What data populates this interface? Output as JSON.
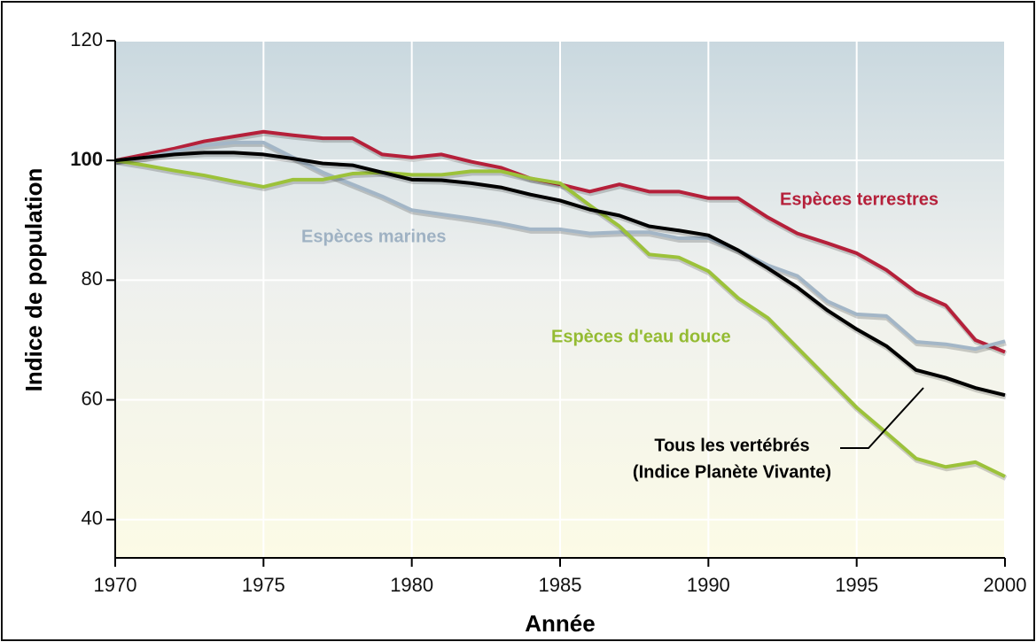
{
  "chart_data": {
    "type": "line",
    "xlabel": "Année",
    "ylabel": "Indice de population",
    "x": [
      1970,
      1971,
      1972,
      1973,
      1974,
      1975,
      1976,
      1977,
      1978,
      1979,
      1980,
      1981,
      1982,
      1983,
      1984,
      1985,
      1986,
      1987,
      1988,
      1989,
      1990,
      1991,
      1992,
      1993,
      1994,
      1995,
      1996,
      1997,
      1998,
      1999,
      2000
    ],
    "xlim": [
      1970,
      2000
    ],
    "xticks": [
      1970,
      1975,
      1980,
      1985,
      1990,
      1995,
      2000
    ],
    "ylim": [
      33.6,
      120
    ],
    "yticks": [
      40,
      60,
      80,
      100,
      120
    ],
    "grid": true,
    "series": [
      {
        "name": "Espèces terrestres",
        "color": "#b5203a",
        "values": [
          100,
          101,
          102,
          103.2,
          104,
          104.8,
          104.2,
          103.7,
          103.7,
          101,
          100.5,
          101,
          99.8,
          98.8,
          97,
          96,
          94.8,
          96,
          94.8,
          94.8,
          93.7,
          93.7,
          90.5,
          87.8,
          86.2,
          84.5,
          81.7,
          78,
          75.8,
          70,
          68
        ]
      },
      {
        "name": "Espèces marines",
        "color": "#a3b6c7",
        "values": [
          100,
          100.5,
          101.5,
          102.5,
          103,
          103,
          100.5,
          98,
          96,
          94,
          91.7,
          91,
          90.3,
          89.5,
          88.5,
          88.5,
          87.8,
          88,
          88,
          87,
          87,
          85,
          82.5,
          80.7,
          76.5,
          74.3,
          74,
          69.7,
          69.3,
          68.5,
          69.8
        ]
      },
      {
        "name": "Espèces d'eau douce",
        "color": "#9cc23a",
        "values": [
          100,
          99.2,
          98.3,
          97.5,
          96.5,
          95.6,
          96.8,
          96.8,
          97.8,
          98,
          97.6,
          97.6,
          98.2,
          98.2,
          97,
          96.2,
          92.5,
          89,
          84.3,
          83.8,
          81.5,
          77,
          73.7,
          68.7,
          63.7,
          58.7,
          54.5,
          50.2,
          48.8,
          49.6,
          47.2
        ]
      },
      {
        "name": "Tous les vertébrés",
        "note": "(Indice Planète Vivante)",
        "color": "#000000",
        "values": [
          100,
          100.5,
          101,
          101.3,
          101.3,
          101,
          100.3,
          99.5,
          99.2,
          98,
          96.8,
          96.7,
          96.2,
          95.5,
          94.3,
          93.3,
          91.8,
          90.8,
          89,
          88.3,
          87.5,
          85,
          82,
          78.8,
          75,
          71.8,
          69,
          65,
          63.7,
          62,
          60.8
        ]
      }
    ]
  }
}
